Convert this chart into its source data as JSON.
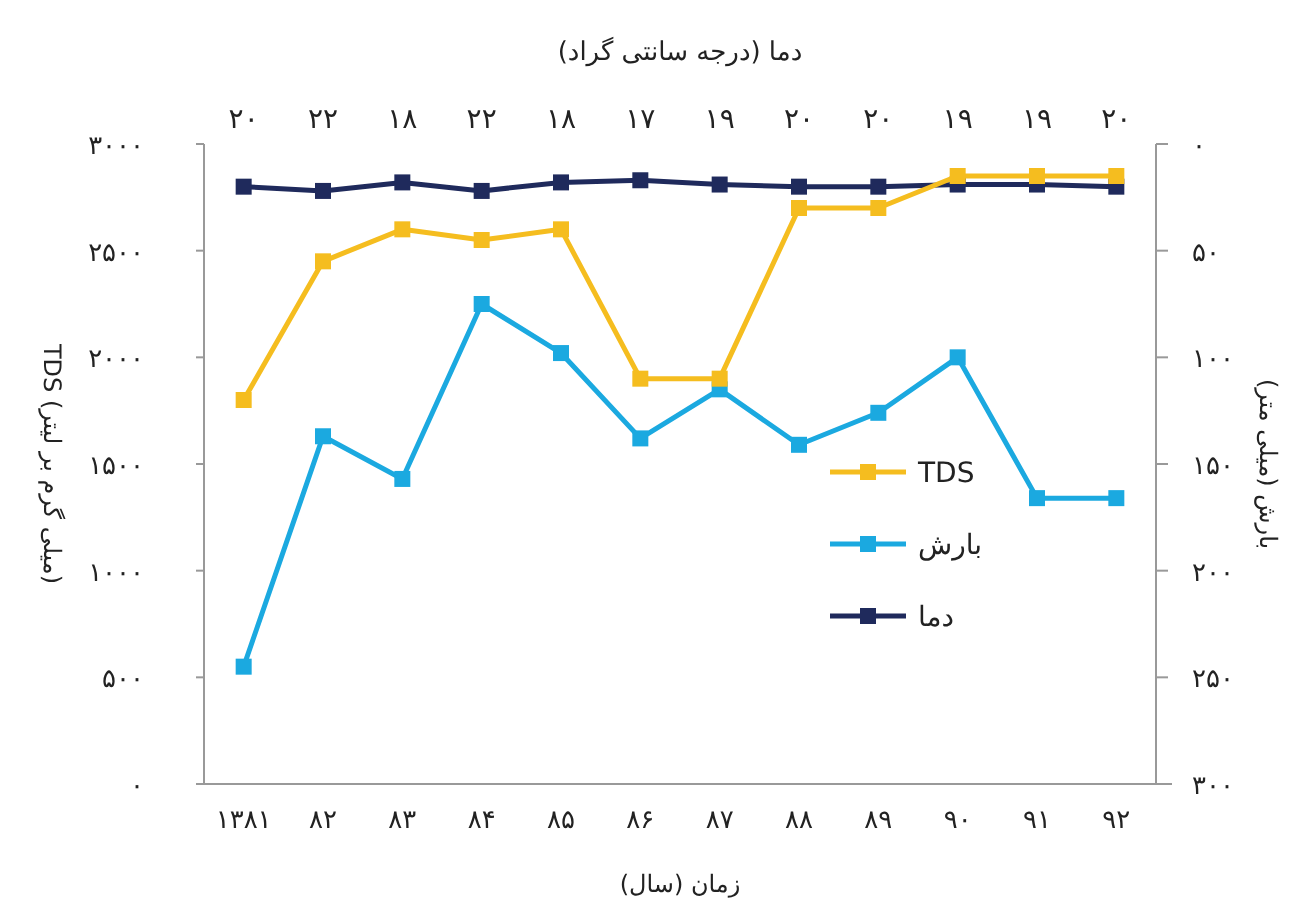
{
  "chart_data": {
    "type": "line",
    "title": "دما (درجه سانتی گراد)",
    "xlabel": "زمان (سال)",
    "ylabel": "TDS (میلی گرم بر لیتر)",
    "y2label": "بارش (میلی متر)",
    "categories": [
      "۱۳۸۱",
      "۸۲",
      "۸۳",
      "۸۴",
      "۸۵",
      "۸۶",
      "۸۷",
      "۸۸",
      "۸۹",
      "۹۰",
      "۹۱",
      "۹۲"
    ],
    "series": [
      {
        "name": "TDS",
        "color": "#f5bd1f",
        "values": [
          1800,
          2450,
          2600,
          2550,
          2600,
          1900,
          1900,
          2700,
          2700,
          2850,
          2850,
          2850
        ]
      },
      {
        "name": "بارش",
        "color": "#1ba9e0",
        "axis": "y2",
        "values": [
          245,
          137,
          157,
          75,
          98,
          138,
          115,
          141,
          126,
          100,
          166,
          166
        ]
      },
      {
        "name": "دما",
        "color": "#1f2a5c",
        "axis": "y2",
        "values": [
          20,
          22,
          18,
          22,
          18,
          17,
          19,
          20,
          20,
          19,
          19,
          20
        ],
        "value_labels": [
          "۲۰",
          "۲۲",
          "۱۸",
          "۲۲",
          "۱۸",
          "۱۷",
          "۱۹",
          "۲۰",
          "۲۰",
          "۱۹",
          "۱۹",
          "۲۰"
        ]
      }
    ],
    "ylim": [
      0,
      3000
    ],
    "yticks": [
      {
        "value": 0,
        "label": "۰"
      },
      {
        "value": 500,
        "label": "۵۰۰"
      },
      {
        "value": 1000,
        "label": "۱۰۰۰"
      },
      {
        "value": 1500,
        "label": "۱۵۰۰"
      },
      {
        "value": 2000,
        "label": "۲۰۰۰"
      },
      {
        "value": 2500,
        "label": "۲۵۰۰"
      },
      {
        "value": 3000,
        "label": "۳۰۰۰"
      }
    ],
    "y2lim": [
      300,
      0
    ],
    "y2ticks": [
      {
        "value": 0,
        "label": "۰"
      },
      {
        "value": 50,
        "label": "۵۰"
      },
      {
        "value": 100,
        "label": "۱۰۰"
      },
      {
        "value": 150,
        "label": "۱۵۰"
      },
      {
        "value": 200,
        "label": "۲۰۰"
      },
      {
        "value": 250,
        "label": "۲۵۰"
      },
      {
        "value": 300,
        "label": "۳۰۰"
      }
    ],
    "marker": "square",
    "line_style": "solid",
    "grid": false,
    "legend": "right"
  }
}
